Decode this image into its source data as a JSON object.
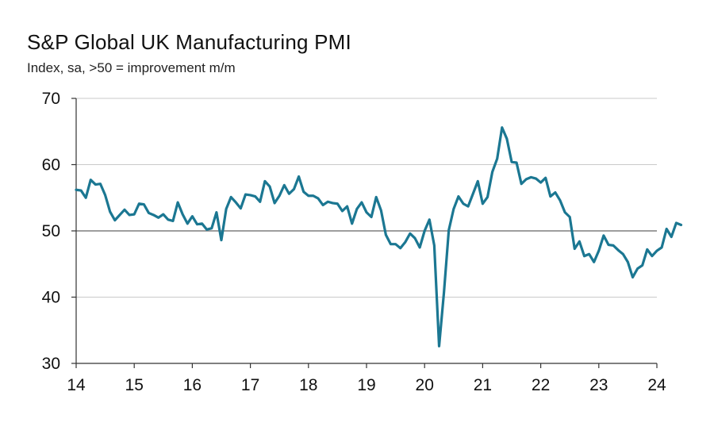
{
  "chart_data": {
    "type": "line",
    "title": "S&P Global UK Manufacturing PMI",
    "subtitle": "Index, sa, >50 = improvement m/m",
    "xlabel": "",
    "ylabel": "",
    "ylim": [
      30,
      70
    ],
    "yticks": [
      "70",
      "60",
      "50",
      "40",
      "30"
    ],
    "xticks": [
      "14",
      "15",
      "16",
      "17",
      "18",
      "19",
      "20",
      "21",
      "22",
      "23",
      "24"
    ],
    "start": "2014-01",
    "frequency": "monthly",
    "reference_line": 50,
    "series": [
      {
        "name": "S&P Global UK Manufacturing PMI",
        "color": "#1b7792",
        "values": [
          56.2,
          56.1,
          55.0,
          57.7,
          57.0,
          57.1,
          55.4,
          52.9,
          51.6,
          52.4,
          53.2,
          52.4,
          52.5,
          54.1,
          54.0,
          52.7,
          52.4,
          52.0,
          52.5,
          51.7,
          51.5,
          54.3,
          52.5,
          51.1,
          52.2,
          51.0,
          51.1,
          50.2,
          50.4,
          52.8,
          48.6,
          53.3,
          55.1,
          54.3,
          53.4,
          55.5,
          55.4,
          55.2,
          54.4,
          57.5,
          56.7,
          54.2,
          55.3,
          56.9,
          55.6,
          56.3,
          58.2,
          55.9,
          55.3,
          55.3,
          54.9,
          53.9,
          54.4,
          54.2,
          54.1,
          53.0,
          53.7,
          51.1,
          53.3,
          54.3,
          52.8,
          52.1,
          55.1,
          53.1,
          49.4,
          48.0,
          48.0,
          47.4,
          48.3,
          49.6,
          48.9,
          47.5,
          50.0,
          51.7,
          47.8,
          32.6,
          40.7,
          50.1,
          53.3,
          55.2,
          54.1,
          53.7,
          55.6,
          57.5,
          54.1,
          55.1,
          58.9,
          60.9,
          65.6,
          63.9,
          60.4,
          60.3,
          57.1,
          57.8,
          58.1,
          57.9,
          57.3,
          58.0,
          55.2,
          55.8,
          54.6,
          52.8,
          52.1,
          47.3,
          48.4,
          46.2,
          46.5,
          45.3,
          47.0,
          49.3,
          47.9,
          47.8,
          47.1,
          46.5,
          45.3,
          43.0,
          44.3,
          44.8,
          47.2,
          46.2,
          47.0,
          47.5,
          50.3,
          49.1,
          51.2,
          50.9
        ]
      }
    ]
  }
}
